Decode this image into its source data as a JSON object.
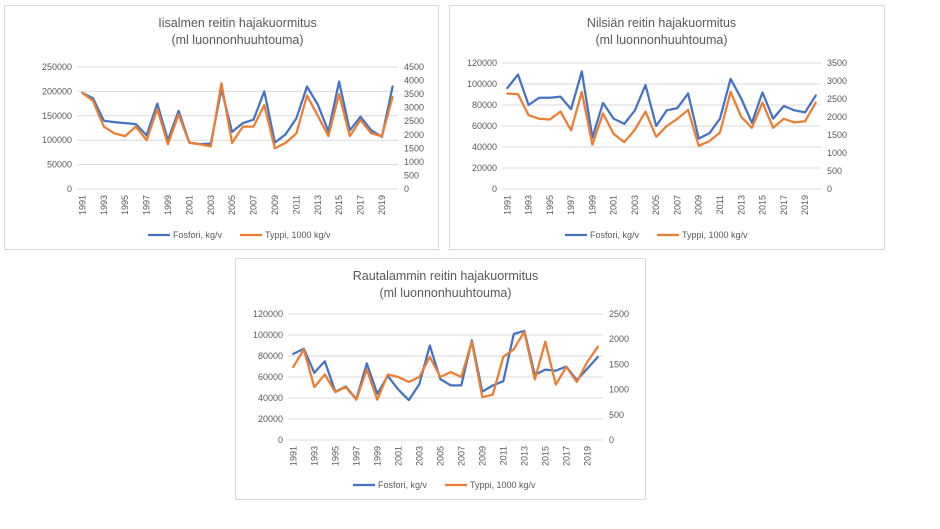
{
  "chart_data": [
    {
      "type": "line",
      "title": "Iisalmen reitin hajakuormitus",
      "subtitle": "(ml luonnonhuuhtouma)",
      "x": [
        1991,
        1992,
        1993,
        1994,
        1995,
        1996,
        1997,
        1998,
        1999,
        2000,
        2001,
        2002,
        2003,
        2004,
        2005,
        2006,
        2007,
        2008,
        2009,
        2010,
        2011,
        2012,
        2013,
        2014,
        2015,
        2016,
        2017,
        2018,
        2019,
        2020
      ],
      "xticks": [
        "1991",
        "1993",
        "1995",
        "1997",
        "1999",
        "2001",
        "2003",
        "2005",
        "2007",
        "2009",
        "2011",
        "2013",
        "2015",
        "2017",
        "2019"
      ],
      "ylim_left": [
        0,
        250000
      ],
      "yticks_left": [
        "0",
        "50000",
        "100000",
        "150000",
        "200000",
        "250000"
      ],
      "ylim_right": [
        0,
        4500
      ],
      "yticks_right": [
        "0",
        "500",
        "1000",
        "1500",
        "2000",
        "2500",
        "3000",
        "3500",
        "4000",
        "4500"
      ],
      "series": [
        {
          "name": "Fosfori, kg/v",
          "axis": "left",
          "color": "#4472c4",
          "values": [
            197000,
            186000,
            140000,
            137000,
            135000,
            133000,
            110000,
            175000,
            100000,
            160000,
            95000,
            92000,
            93000,
            205000,
            117000,
            135000,
            142000,
            200000,
            95000,
            112000,
            145000,
            210000,
            173000,
            118000,
            220000,
            120000,
            148000,
            120000,
            107000,
            210000
          ]
        },
        {
          "name": "Typpi, 1000 kg/v",
          "axis": "right",
          "color": "#ed7d31",
          "values": [
            3550,
            3250,
            2300,
            2050,
            1950,
            2300,
            1800,
            2950,
            1650,
            2750,
            1700,
            1650,
            1570,
            3900,
            1700,
            2300,
            2300,
            3100,
            1500,
            1700,
            2050,
            3450,
            2700,
            1950,
            3500,
            1950,
            2550,
            2050,
            1950,
            3400
          ]
        }
      ],
      "legend": "bottom"
    },
    {
      "type": "line",
      "title": "Nilsiän reitin hajakuormitus",
      "subtitle": "(ml luonnonhuuhtouma)",
      "x": [
        1991,
        1992,
        1993,
        1994,
        1995,
        1996,
        1997,
        1998,
        1999,
        2000,
        2001,
        2002,
        2003,
        2004,
        2005,
        2006,
        2007,
        2008,
        2009,
        2010,
        2011,
        2012,
        2013,
        2014,
        2015,
        2016,
        2017,
        2018,
        2019,
        2020
      ],
      "xticks": [
        "1991",
        "1993",
        "1995",
        "1997",
        "1999",
        "2001",
        "2003",
        "2005",
        "2007",
        "2009",
        "2011",
        "2013",
        "2015",
        "2017",
        "2019"
      ],
      "ylim_left": [
        0,
        120000
      ],
      "yticks_left": [
        "0",
        "20000",
        "40000",
        "60000",
        "80000",
        "100000",
        "120000"
      ],
      "ylim_right": [
        0,
        3500
      ],
      "yticks_right": [
        "0",
        "500",
        "1000",
        "1500",
        "2000",
        "2500",
        "3000",
        "3500"
      ],
      "series": [
        {
          "name": "Fosfori, kg/v",
          "axis": "left",
          "color": "#4472c4",
          "values": [
            96000,
            109000,
            80000,
            87000,
            87000,
            88000,
            76000,
            112000,
            49000,
            82000,
            67000,
            62000,
            75000,
            99000,
            60000,
            75000,
            77000,
            91000,
            48000,
            53000,
            67000,
            105000,
            86000,
            63000,
            92000,
            67000,
            79000,
            75000,
            73000,
            89000
          ]
        },
        {
          "name": "Typpi, 1000 kg/v",
          "axis": "right",
          "color": "#ed7d31",
          "values": [
            2650,
            2630,
            2050,
            1950,
            1930,
            2150,
            1630,
            2700,
            1230,
            2100,
            1530,
            1300,
            1650,
            2150,
            1450,
            1750,
            1950,
            2200,
            1200,
            1330,
            1570,
            2700,
            2000,
            1700,
            2400,
            1700,
            1950,
            1850,
            1880,
            2400
          ]
        }
      ],
      "legend": "bottom"
    },
    {
      "type": "line",
      "title": "Rautalammin reitin hajakuormitus",
      "subtitle": "(ml luonnonhuuhtouma)",
      "x": [
        1991,
        1992,
        1993,
        1994,
        1995,
        1996,
        1997,
        1998,
        1999,
        2000,
        2001,
        2002,
        2003,
        2004,
        2005,
        2006,
        2007,
        2008,
        2009,
        2010,
        2011,
        2012,
        2013,
        2014,
        2015,
        2016,
        2017,
        2018,
        2019,
        2020
      ],
      "xticks": [
        "1991",
        "1993",
        "1995",
        "1997",
        "1999",
        "2001",
        "2003",
        "2005",
        "2007",
        "2009",
        "2011",
        "2013",
        "2015",
        "2017",
        "2019"
      ],
      "ylim_left": [
        0,
        120000
      ],
      "yticks_left": [
        "0",
        "20000",
        "40000",
        "60000",
        "80000",
        "100000",
        "120000"
      ],
      "ylim_right": [
        0,
        2500
      ],
      "yticks_right": [
        "0",
        "500",
        "1000",
        "1500",
        "2000",
        "2500"
      ],
      "series": [
        {
          "name": "Fosfori, kg/v",
          "axis": "left",
          "color": "#4472c4",
          "values": [
            82000,
            87000,
            64000,
            75000,
            46000,
            51000,
            39000,
            73000,
            44000,
            61000,
            48000,
            38000,
            53000,
            90000,
            58000,
            52000,
            52000,
            95000,
            46000,
            52000,
            56000,
            101000,
            104000,
            62000,
            67000,
            66000,
            70000,
            57000,
            68000,
            79000
          ]
        },
        {
          "name": "Typpi, 1000 kg/v",
          "axis": "right",
          "color": "#ed7d31",
          "values": [
            1450,
            1800,
            1050,
            1300,
            950,
            1050,
            800,
            1400,
            800,
            1300,
            1250,
            1150,
            1250,
            1650,
            1250,
            1350,
            1250,
            1950,
            850,
            900,
            1650,
            1800,
            2150,
            1200,
            1950,
            1100,
            1450,
            1150,
            1550,
            1850
          ]
        }
      ],
      "legend": "bottom"
    }
  ]
}
